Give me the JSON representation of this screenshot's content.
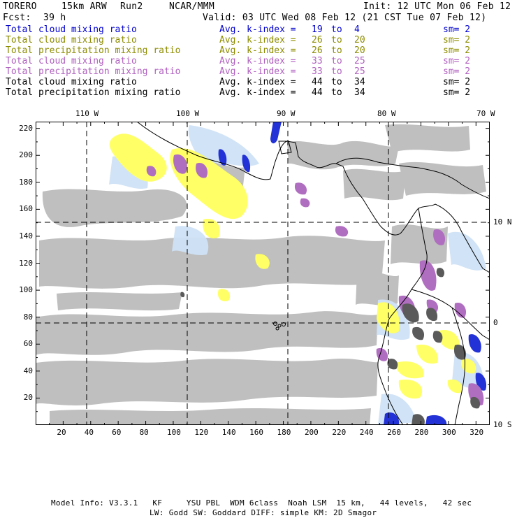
{
  "header": {
    "model": "TORERO",
    "resolution": "15km ARW",
    "run": "Run2",
    "org": "NCAR/MMM",
    "init": "Init: 12 UTC Mon 06 Feb 12",
    "fcst_label": "Fcst:",
    "fcst_value": "39 h",
    "valid": "Valid: 03 UTC Wed 08 Feb 12 (21 CST Tue 07 Feb 12)"
  },
  "legend": [
    {
      "label": "Total cloud mixing ratio",
      "kindex": "Avg. k-index =",
      "k_from": "19",
      "to": "to",
      "k_to": "4",
      "sm": "sm= 2",
      "color": "#0000cc"
    },
    {
      "label": "Total cloud mixing ratio",
      "kindex": "Avg. k-index =",
      "k_from": "26",
      "to": "to",
      "k_to": "20",
      "sm": "sm= 2",
      "color": "#8c8c00"
    },
    {
      "label": "Total precipitation mixing ratio",
      "kindex": "Avg. k-index =",
      "k_from": "26",
      "to": "to",
      "k_to": "20",
      "sm": "sm= 2",
      "color": "#8c8c00"
    },
    {
      "label": "Total cloud mixing ratio",
      "kindex": "Avg. k-index =",
      "k_from": "33",
      "to": "to",
      "k_to": "25",
      "sm": "sm= 2",
      "color": "#b05fc0"
    },
    {
      "label": "Total precipitation mixing ratio",
      "kindex": "Avg. k-index =",
      "k_from": "33",
      "to": "to",
      "k_to": "25",
      "sm": "sm= 2",
      "color": "#b05fc0"
    },
    {
      "label": "Total cloud mixing ratio",
      "kindex": "Avg. k-index =",
      "k_from": "44",
      "to": "to",
      "k_to": "34",
      "sm": "sm= 2",
      "color": "#000000"
    },
    {
      "label": "Total precipitation mixing ratio",
      "kindex": "Avg. k-index =",
      "k_from": "44",
      "to": "to",
      "k_to": "34",
      "sm": "sm= 2",
      "color": "#000000"
    }
  ],
  "map": {
    "lon_labels": [
      "110 W",
      "100 W",
      "90 W",
      "80 W",
      "70 W"
    ],
    "lat_labels": [
      "10 N",
      "0",
      "10 S"
    ],
    "x_ticks": [
      "20",
      "40",
      "60",
      "80",
      "100",
      "120",
      "140",
      "160",
      "180",
      "200",
      "220",
      "240",
      "260",
      "280",
      "300",
      "320"
    ],
    "y_ticks": [
      "220",
      "200",
      "180",
      "160",
      "140",
      "120",
      "100",
      "80",
      "60",
      "40",
      "20"
    ],
    "colors": {
      "low": "#c0d8f0",
      "mid_light": "#8ab4ee",
      "blue": "#1f2fd0",
      "yellow": "#ffff66",
      "purple": "#b06ec0",
      "grey": "#bfbfbf",
      "dark_grey": "#5a5a5a"
    }
  },
  "footer": {
    "line1": "Model Info: V3.3.1   KF     YSU PBL  WDM 6class  Noah LSM  15 km,   44 levels,   42 sec",
    "line2": "LW: Godd SW: Goddard DIFF: simple KM: 2D Smagor"
  }
}
